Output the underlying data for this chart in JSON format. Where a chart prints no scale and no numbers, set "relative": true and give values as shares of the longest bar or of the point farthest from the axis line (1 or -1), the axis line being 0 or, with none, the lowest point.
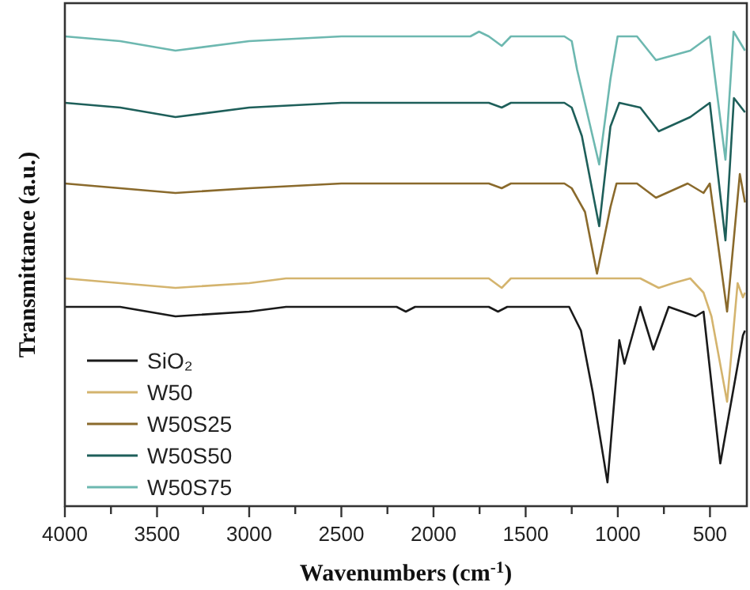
{
  "chart_data": {
    "type": "line",
    "relative": true,
    "xlabel": "Wavenumbers (cm$^{-1}$)",
    "ylabel": "Transmittance (a.u.)",
    "xlim": [
      4000,
      300
    ],
    "xticks": [
      4000,
      {
        "value": 3750,
        "label": null
      },
      3500,
      {
        "value": 3250,
        "label": null
      },
      3000,
      {
        "value": 2750,
        "label": null
      },
      2500,
      {
        "value": 2250,
        "label": null
      },
      2000,
      {
        "value": 1750,
        "label": null
      },
      1500,
      {
        "value": 1250,
        "label": null
      },
      1000,
      {
        "value": 750,
        "label": null
      },
      500
    ],
    "legend": "bottom left",
    "grid": false,
    "series": [
      {
        "name": "SiO₂",
        "color": "#1a1a1a",
        "x": [
          4000,
          3700,
          3400,
          3000,
          2800,
          2200,
          2150,
          2100,
          1700,
          1650,
          1600,
          1290,
          1264,
          1200,
          1136,
          1056,
          992,
          964,
          878,
          807,
          724,
          578,
          535,
          444,
          321,
          310
        ],
        "values": [
          0.42,
          0.42,
          0.4,
          0.41,
          0.42,
          0.42,
          0.41,
          0.42,
          0.42,
          0.41,
          0.42,
          0.42,
          0.42,
          0.37,
          0.24,
          0.05,
          0.35,
          0.3,
          0.42,
          0.33,
          0.42,
          0.4,
          0.41,
          0.09,
          0.36,
          0.37
        ]
      },
      {
        "name": "W50",
        "color": "#d4b46e",
        "x": [
          4000,
          3700,
          3400,
          3000,
          2800,
          1700,
          1630,
          1580,
          900,
          878,
          778,
          700,
          607,
          535,
          492,
          407,
          350,
          321,
          310
        ],
        "values": [
          0.48,
          0.47,
          0.46,
          0.47,
          0.48,
          0.48,
          0.46,
          0.48,
          0.48,
          0.48,
          0.46,
          0.47,
          0.48,
          0.45,
          0.4,
          0.22,
          0.47,
          0.44,
          0.45
        ]
      },
      {
        "name": "W50S25",
        "color": "#8a6a2c",
        "x": [
          4000,
          3700,
          3400,
          3000,
          2500,
          1700,
          1630,
          1580,
          1290,
          1250,
          1178,
          1113,
          1040,
          1007,
          896,
          793,
          621,
          535,
          501,
          407,
          338,
          310
        ],
        "values": [
          0.68,
          0.67,
          0.66,
          0.67,
          0.68,
          0.68,
          0.67,
          0.68,
          0.68,
          0.67,
          0.62,
          0.49,
          0.63,
          0.68,
          0.68,
          0.65,
          0.68,
          0.66,
          0.68,
          0.41,
          0.7,
          0.64
        ]
      },
      {
        "name": "W50S50",
        "color": "#1e5f5a",
        "x": [
          4000,
          3700,
          3400,
          3000,
          2500,
          1700,
          1630,
          1580,
          1290,
          1250,
          1195,
          1101,
          1040,
          992,
          878,
          778,
          607,
          501,
          416,
          370,
          310
        ],
        "values": [
          0.85,
          0.84,
          0.82,
          0.84,
          0.85,
          0.85,
          0.84,
          0.85,
          0.85,
          0.84,
          0.78,
          0.59,
          0.8,
          0.85,
          0.84,
          0.79,
          0.82,
          0.85,
          0.56,
          0.86,
          0.83
        ]
      },
      {
        "name": "W50S75",
        "color": "#6db8b0",
        "x": [
          4000,
          3700,
          3400,
          3000,
          2500,
          1800,
          1753,
          1700,
          1630,
          1580,
          1290,
          1250,
          1221,
          1101,
          1040,
          1001,
          896,
          793,
          607,
          501,
          416,
          372,
          310
        ],
        "values": [
          0.99,
          0.98,
          0.96,
          0.98,
          0.99,
          0.99,
          1.0,
          0.99,
          0.97,
          0.99,
          0.99,
          0.98,
          0.92,
          0.72,
          0.9,
          0.99,
          0.99,
          0.94,
          0.96,
          0.99,
          0.73,
          1.0,
          0.96
        ]
      }
    ]
  }
}
